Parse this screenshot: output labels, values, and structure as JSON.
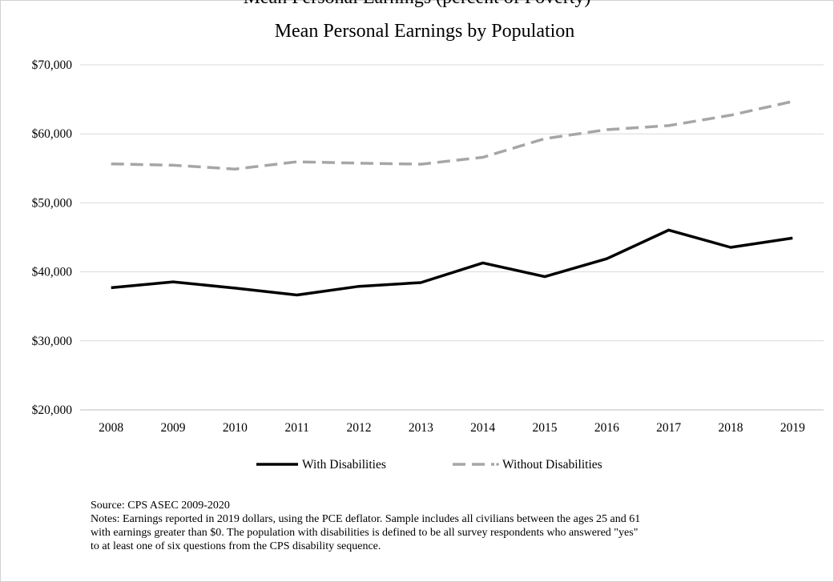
{
  "header": {
    "cut_title": "Mean Personal Earnings (percent of Poverty)"
  },
  "chart_data": {
    "type": "line",
    "title": "Mean Personal Earnings by Population",
    "xlabel": "",
    "ylabel": "",
    "x": [
      "2008",
      "2009",
      "2010",
      "2011",
      "2012",
      "2013",
      "2014",
      "2015",
      "2016",
      "2017",
      "2018",
      "2019"
    ],
    "series": [
      {
        "name": "With Disabilities",
        "color": "#000000",
        "dash": "solid",
        "values": [
          37700,
          38550,
          37650,
          36650,
          37900,
          38450,
          41300,
          39300,
          41900,
          46050,
          43550,
          44900
        ]
      },
      {
        "name": "Without Disabilities",
        "color": "#a6a6a6",
        "dash": "dashed",
        "values": [
          55650,
          55450,
          54900,
          55950,
          55750,
          55600,
          56600,
          59300,
          60600,
          61200,
          62700,
          64700
        ]
      }
    ],
    "ylim": [
      20000,
      70000
    ],
    "yticks": [
      20000,
      30000,
      40000,
      50000,
      60000,
      70000
    ],
    "ytick_labels": [
      "$20,000",
      "$30,000",
      "$40,000",
      "$50,000",
      "$60,000",
      "$70,000"
    ],
    "grid": true,
    "legend": "bottom"
  },
  "notes": {
    "source": "Source: CPS ASEC 2009-2020",
    "line1": "Notes: Earnings reported in 2019 dollars, using the PCE deflator. Sample includes all civilians between the ages 25 and 61",
    "line2": "with earnings greater than $0. The population with disabilities is defined to be all survey respondents who answered \"yes\"",
    "line3": "to at least one of six questions from the CPS disability sequence."
  }
}
